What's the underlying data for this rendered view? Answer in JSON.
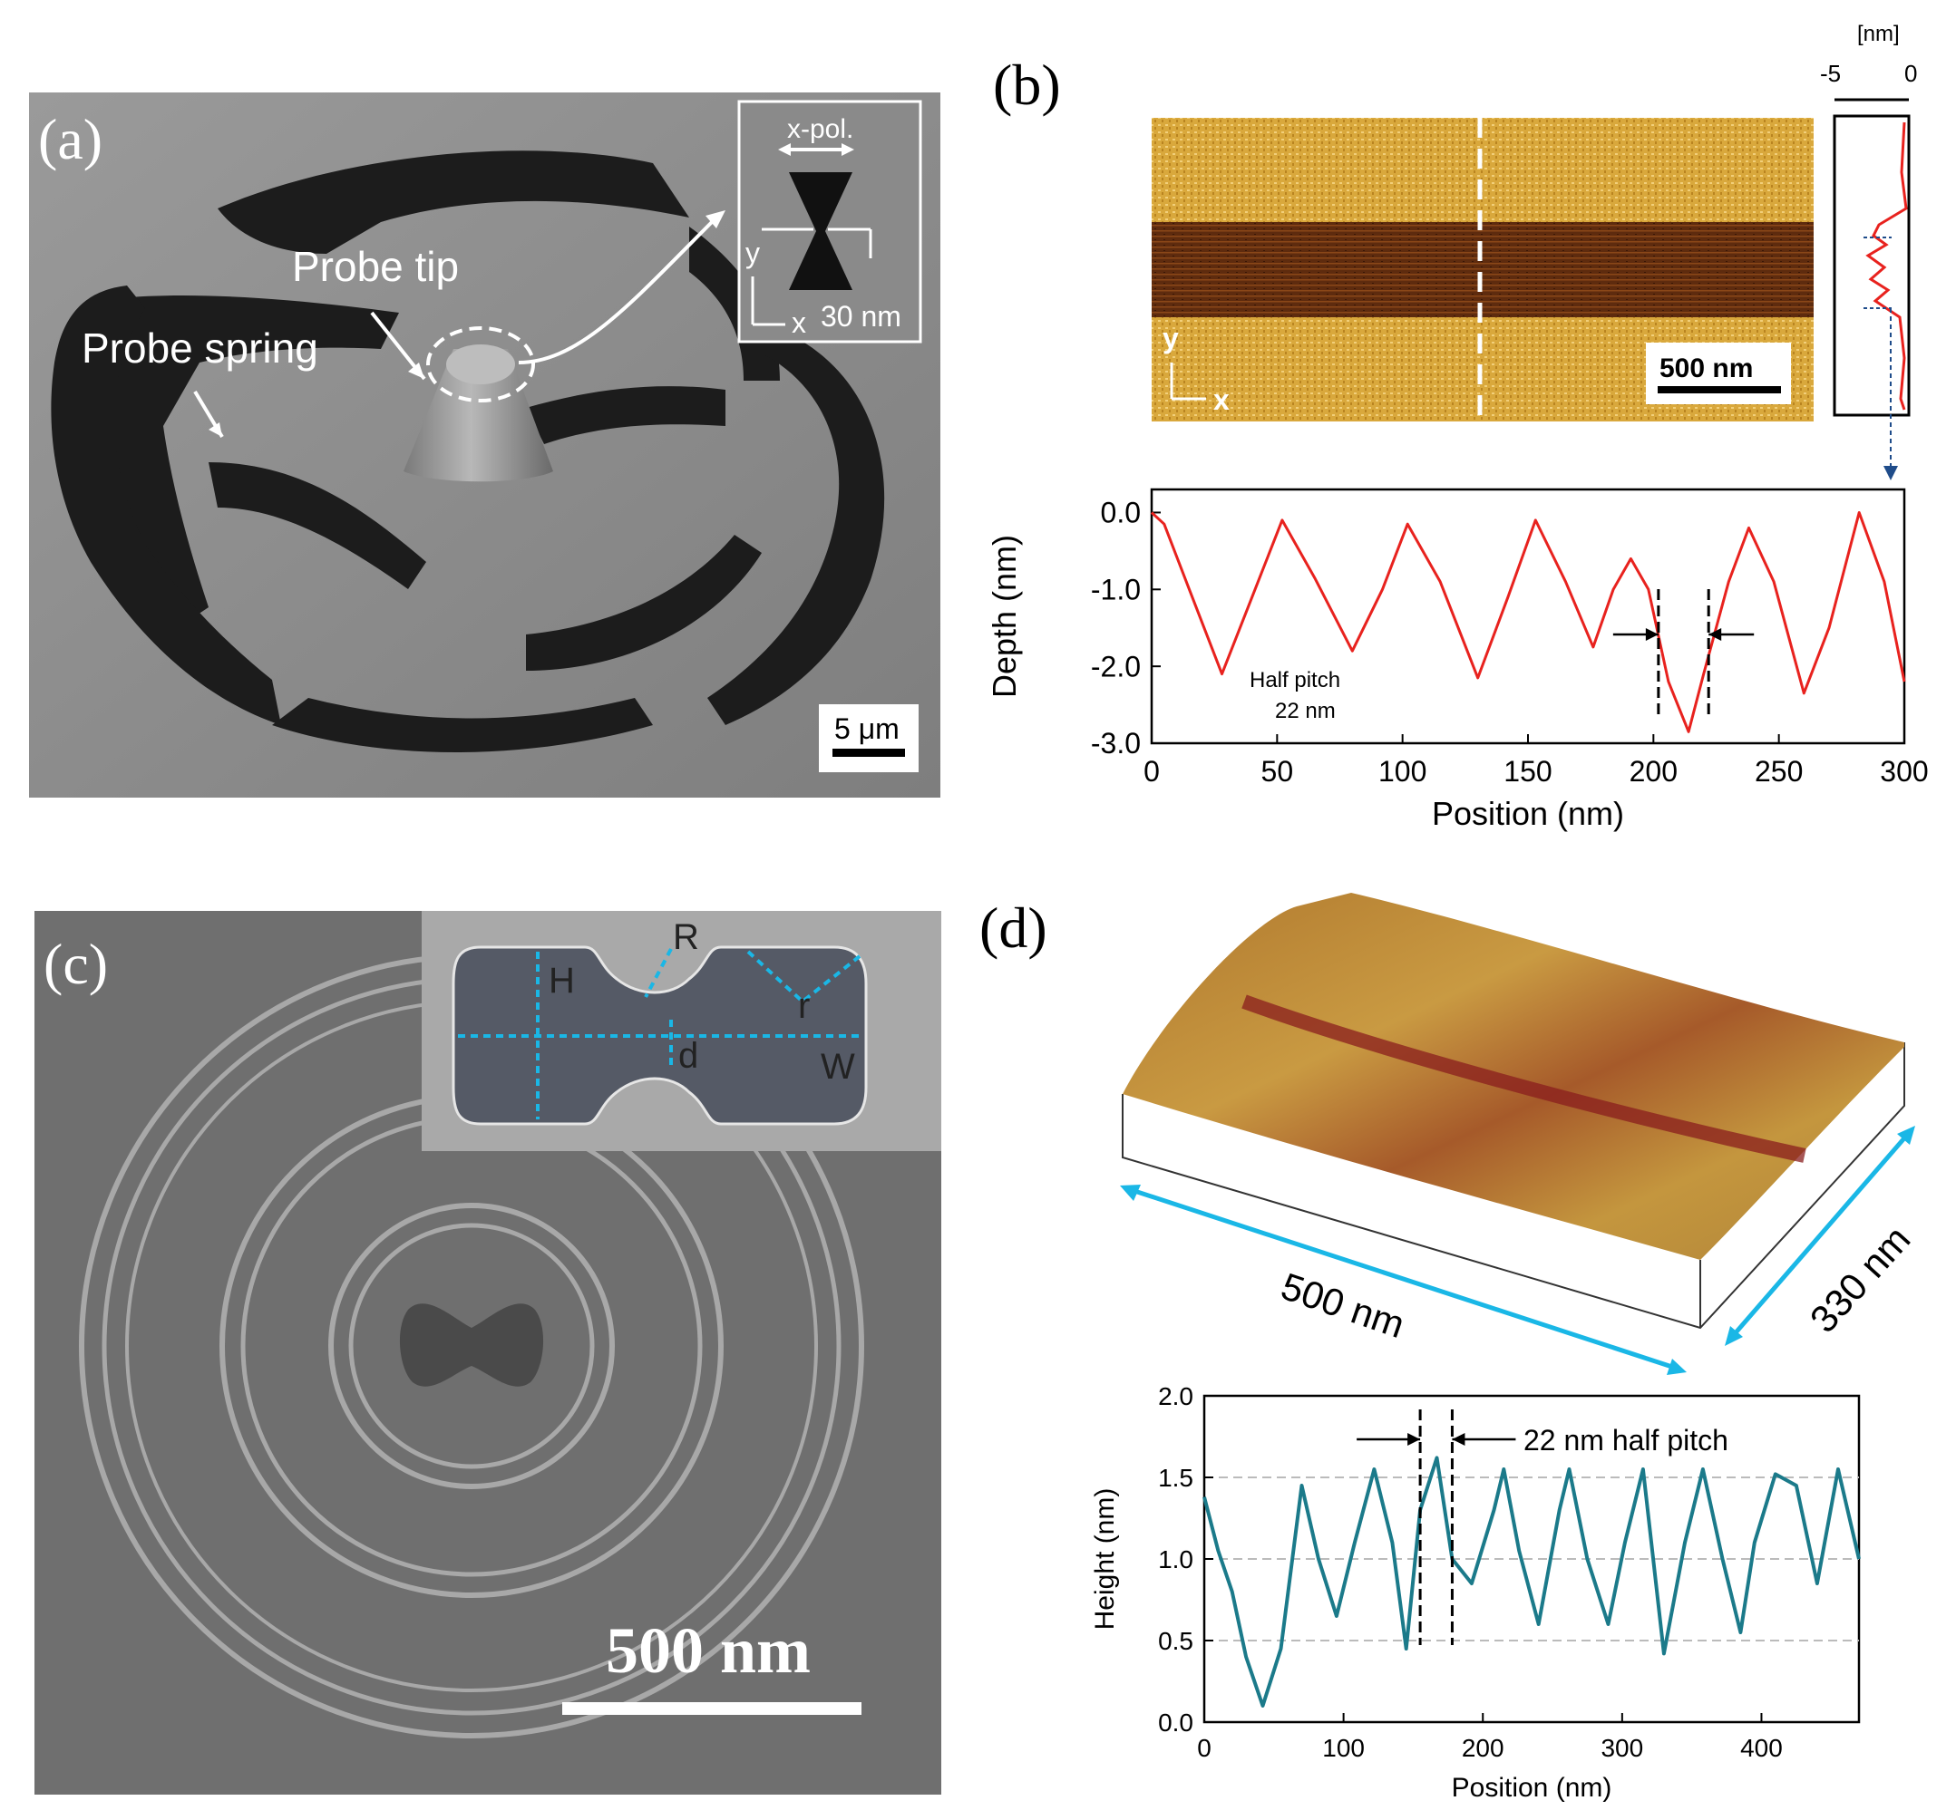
{
  "panel_a": {
    "letter": "(a)",
    "tip_label": "Probe tip",
    "spring_label": "Probe spring",
    "inset_pol": "x-pol.",
    "inset_y": "y",
    "inset_x": "x",
    "inset_gap": "30 nm",
    "scale": "5 μm"
  },
  "panel_b": {
    "letter": "(b)",
    "map_y": "y",
    "map_x": "x",
    "map_scale": "500 nm",
    "profile_unit": "[nm]",
    "profile_min": "-5",
    "profile_max": "0",
    "annot_line1": "Half pitch",
    "annot_line2": "22 nm"
  },
  "panel_c": {
    "letter": "(c)",
    "scale": "500 nm",
    "labels": {
      "H": "H",
      "R": "R",
      "r": "r",
      "d": "d",
      "W": "W"
    }
  },
  "panel_d": {
    "letter": "(d)",
    "dim_long": "500 nm",
    "dim_short": "330 nm",
    "annot": "22 nm half pitch"
  },
  "chart_data": [
    {
      "type": "line",
      "panel": "b",
      "xlabel": "Position (nm)",
      "ylabel": "Depth (nm)",
      "xlim": [
        0,
        300
      ],
      "ylim": [
        -3.0,
        0.3
      ],
      "xticks": [
        0,
        50,
        100,
        150,
        200,
        250,
        300
      ],
      "yticks": [
        0.0,
        -1.0,
        -2.0,
        -3.0
      ],
      "ytick_labels": [
        "0.0",
        "-1.0",
        "-2.0",
        "-3.0"
      ],
      "line_color": "#e8221e",
      "x": [
        0,
        5,
        15,
        28,
        40,
        52,
        65,
        80,
        92,
        102,
        115,
        130,
        142,
        153,
        165,
        176,
        184,
        191,
        198,
        206,
        214,
        220,
        230,
        238,
        248,
        260,
        270,
        282,
        292,
        300
      ],
      "y": [
        0.0,
        -0.15,
        -1.0,
        -2.1,
        -1.1,
        -0.1,
        -0.85,
        -1.8,
        -1.0,
        -0.15,
        -0.9,
        -2.15,
        -1.1,
        -0.1,
        -0.9,
        -1.75,
        -1.0,
        -0.6,
        -1.0,
        -2.2,
        -2.85,
        -2.1,
        -0.9,
        -0.2,
        -0.9,
        -2.35,
        -1.5,
        0.0,
        -0.9,
        -2.2
      ]
    },
    {
      "type": "line",
      "panel": "d",
      "xlabel": "Position (nm)",
      "ylabel": "Height (nm)",
      "xlim": [
        0,
        470
      ],
      "ylim": [
        0,
        2.0
      ],
      "xticks": [
        0,
        100,
        200,
        300,
        400
      ],
      "yticks": [
        0.0,
        0.5,
        1.0,
        1.5,
        2.0
      ],
      "ytick_labels": [
        "0.0",
        "0.5",
        "1.0",
        "1.5",
        "2.0"
      ],
      "grid": "y dashed",
      "line_color": "#1b7a8a",
      "x": [
        0,
        10,
        20,
        30,
        42,
        55,
        70,
        82,
        95,
        108,
        122,
        135,
        145,
        155,
        167,
        178,
        192,
        208,
        215,
        226,
        240,
        255,
        262,
        275,
        290,
        302,
        315,
        330,
        345,
        358,
        372,
        385,
        395,
        410,
        425,
        440,
        455,
        470
      ],
      "y": [
        1.38,
        1.05,
        0.8,
        0.4,
        0.1,
        0.45,
        1.45,
        1.0,
        0.65,
        1.1,
        1.55,
        1.1,
        0.45,
        1.3,
        1.62,
        1.0,
        0.85,
        1.3,
        1.55,
        1.05,
        0.6,
        1.3,
        1.55,
        1.0,
        0.6,
        1.1,
        1.55,
        0.42,
        1.1,
        1.55,
        1.0,
        0.55,
        1.1,
        1.52,
        1.45,
        0.85,
        1.55,
        1.0
      ]
    }
  ]
}
